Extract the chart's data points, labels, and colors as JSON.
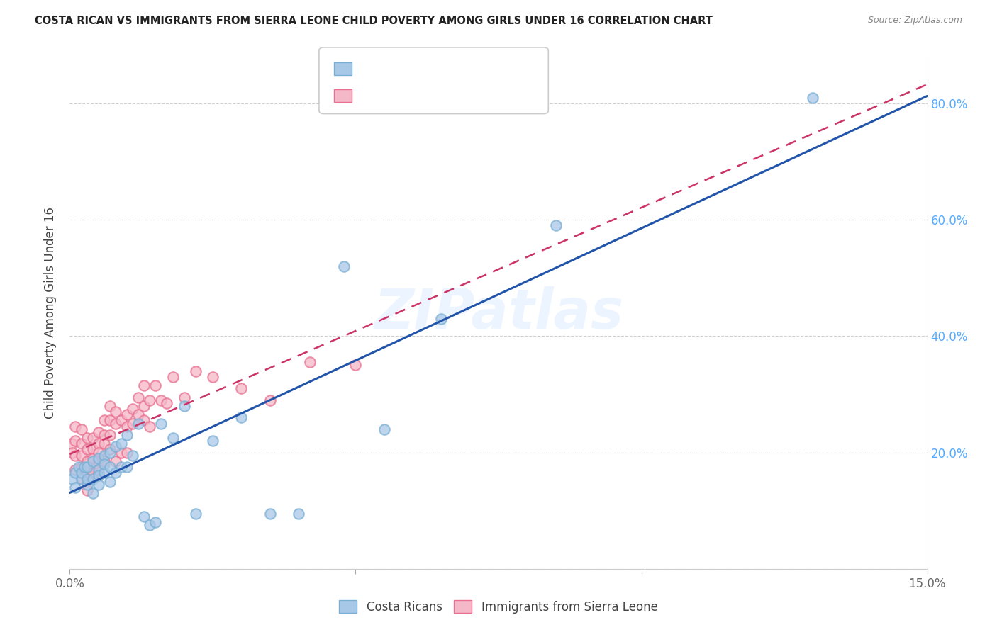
{
  "title": "COSTA RICAN VS IMMIGRANTS FROM SIERRA LEONE CHILD POVERTY AMONG GIRLS UNDER 16 CORRELATION CHART",
  "source": "Source: ZipAtlas.com",
  "ylabel": "Child Poverty Among Girls Under 16",
  "xlim": [
    0.0,
    0.15
  ],
  "ylim": [
    0.0,
    0.88
  ],
  "watermark": "ZIPatlas",
  "blue_color": "#a8c8e8",
  "blue_edge_color": "#7aafd4",
  "pink_color": "#f5b8c8",
  "pink_edge_color": "#e87090",
  "blue_line_color": "#2255aa",
  "pink_line_color": "#cc3366",
  "costa_ricans_x": [
    0.0005,
    0.001,
    0.001,
    0.0015,
    0.002,
    0.002,
    0.0025,
    0.003,
    0.003,
    0.003,
    0.004,
    0.004,
    0.004,
    0.005,
    0.005,
    0.005,
    0.005,
    0.006,
    0.006,
    0.006,
    0.007,
    0.007,
    0.007,
    0.008,
    0.008,
    0.009,
    0.009,
    0.01,
    0.01,
    0.011,
    0.012,
    0.013,
    0.014,
    0.015,
    0.016,
    0.018,
    0.02,
    0.022,
    0.025,
    0.03,
    0.035,
    0.04,
    0.048,
    0.055,
    0.065,
    0.085,
    0.13
  ],
  "costa_ricans_y": [
    0.155,
    0.14,
    0.165,
    0.175,
    0.155,
    0.165,
    0.175,
    0.145,
    0.175,
    0.155,
    0.13,
    0.155,
    0.185,
    0.145,
    0.17,
    0.19,
    0.16,
    0.165,
    0.195,
    0.18,
    0.15,
    0.175,
    0.2,
    0.165,
    0.21,
    0.175,
    0.215,
    0.175,
    0.23,
    0.195,
    0.25,
    0.09,
    0.075,
    0.08,
    0.25,
    0.225,
    0.28,
    0.095,
    0.22,
    0.26,
    0.095,
    0.095,
    0.52,
    0.24,
    0.43,
    0.59,
    0.81
  ],
  "sierra_leone_x": [
    0.0003,
    0.0005,
    0.001,
    0.001,
    0.001,
    0.001,
    0.002,
    0.002,
    0.002,
    0.002,
    0.002,
    0.003,
    0.003,
    0.003,
    0.003,
    0.003,
    0.003,
    0.004,
    0.004,
    0.004,
    0.004,
    0.005,
    0.005,
    0.005,
    0.005,
    0.005,
    0.006,
    0.006,
    0.006,
    0.006,
    0.007,
    0.007,
    0.007,
    0.007,
    0.008,
    0.008,
    0.008,
    0.009,
    0.009,
    0.01,
    0.01,
    0.01,
    0.011,
    0.011,
    0.012,
    0.012,
    0.013,
    0.013,
    0.013,
    0.014,
    0.014,
    0.015,
    0.016,
    0.017,
    0.018,
    0.02,
    0.022,
    0.025,
    0.03,
    0.035,
    0.042,
    0.05
  ],
  "sierra_leone_y": [
    0.215,
    0.2,
    0.245,
    0.22,
    0.195,
    0.17,
    0.24,
    0.215,
    0.195,
    0.175,
    0.155,
    0.225,
    0.205,
    0.185,
    0.165,
    0.155,
    0.135,
    0.225,
    0.205,
    0.19,
    0.165,
    0.235,
    0.215,
    0.2,
    0.185,
    0.165,
    0.23,
    0.255,
    0.215,
    0.185,
    0.28,
    0.255,
    0.23,
    0.205,
    0.27,
    0.25,
    0.185,
    0.255,
    0.2,
    0.265,
    0.245,
    0.2,
    0.275,
    0.25,
    0.295,
    0.265,
    0.315,
    0.28,
    0.255,
    0.29,
    0.245,
    0.315,
    0.29,
    0.285,
    0.33,
    0.295,
    0.34,
    0.33,
    0.31,
    0.29,
    0.355,
    0.35
  ]
}
